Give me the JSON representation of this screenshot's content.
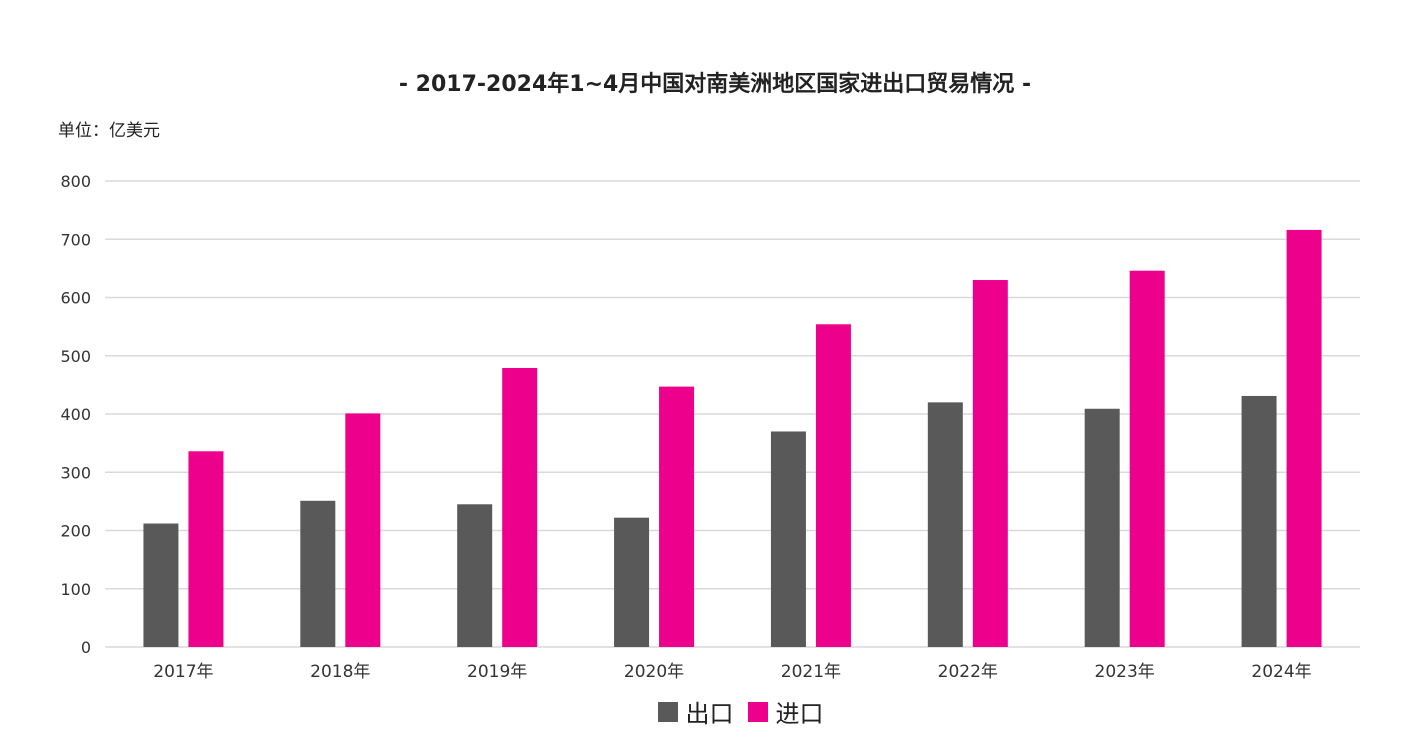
{
  "chart_data": {
    "type": "bar",
    "title": "- 2017-2024年1~4月中国对南美洲地区国家进出口贸易情况 -",
    "unit": "单位：亿美元",
    "categories": [
      "2017年",
      "2018年",
      "2019年",
      "2020年",
      "2021年",
      "2022年",
      "2023年",
      "2024年"
    ],
    "series": [
      {
        "name": "出口",
        "color": "#595959",
        "values": [
          212,
          251,
          245,
          222,
          370,
          420,
          409,
          431
        ]
      },
      {
        "name": "进口",
        "color": "#EC008C",
        "values": [
          336,
          401,
          479,
          447,
          554,
          630,
          646,
          716
        ]
      }
    ],
    "ylim": [
      0,
      800
    ],
    "yticks": [
      "0",
      "100",
      "200",
      "300",
      "400",
      "500",
      "600",
      "700",
      "800"
    ],
    "grid": true,
    "legend_position": "bottom"
  }
}
